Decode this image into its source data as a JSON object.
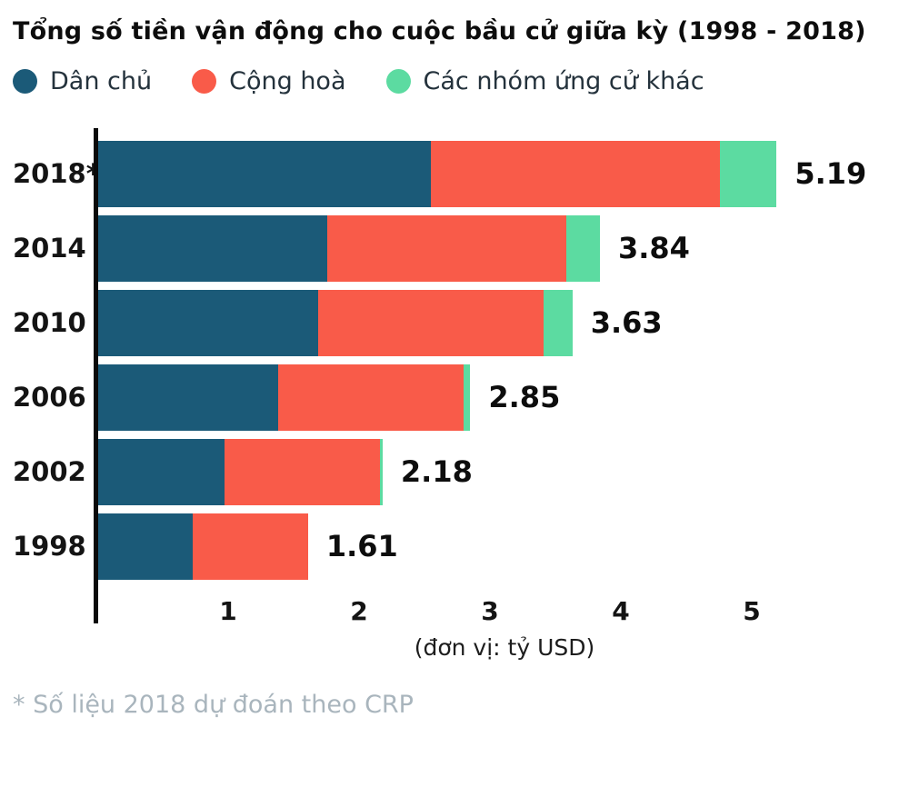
{
  "title": "Tổng số tiền vận động cho cuộc bầu cử giữa kỳ (1998 - 2018)",
  "legend": {
    "items": [
      {
        "label": "Dân chủ",
        "color": "#1b5a78"
      },
      {
        "label": "Cộng hoà",
        "color": "#f95b49"
      },
      {
        "label": "Các nhóm ứng cử khác",
        "color": "#5cdba1"
      }
    ]
  },
  "chart_data": {
    "type": "bar",
    "orientation": "horizontal",
    "stacked": true,
    "title": "Tổng số tiền vận động cho cuộc bầu cử giữa kỳ (1998 - 2018)",
    "categories": [
      "2018*",
      "2014",
      "2010",
      "2006",
      "2002",
      "1998"
    ],
    "series": [
      {
        "name": "Dân chủ",
        "key": "dan-chu",
        "color": "#1b5a78",
        "values": [
          2.55,
          1.76,
          1.69,
          1.38,
          0.97,
          0.73
        ]
      },
      {
        "name": "Cộng hoà",
        "key": "cong-hoa",
        "color": "#f95b49",
        "values": [
          2.21,
          1.82,
          1.72,
          1.42,
          1.19,
          0.88
        ]
      },
      {
        "name": "Các nhóm ứng cử khác",
        "key": "khac",
        "color": "#5cdba1",
        "values": [
          0.43,
          0.26,
          0.22,
          0.05,
          0.02,
          0.0
        ]
      }
    ],
    "totals": [
      "5.19",
      "3.84",
      "3.63",
      "2.85",
      "2.18",
      "1.61"
    ],
    "x_ticks": [
      1,
      2,
      3,
      4,
      5
    ],
    "xlim": [
      0,
      5.5
    ],
    "xlabel": "(đơn vị: tỷ USD)",
    "legend_position": "top",
    "grid": false
  },
  "footnote": "* Số liệu 2018 dự đoán theo CRP"
}
